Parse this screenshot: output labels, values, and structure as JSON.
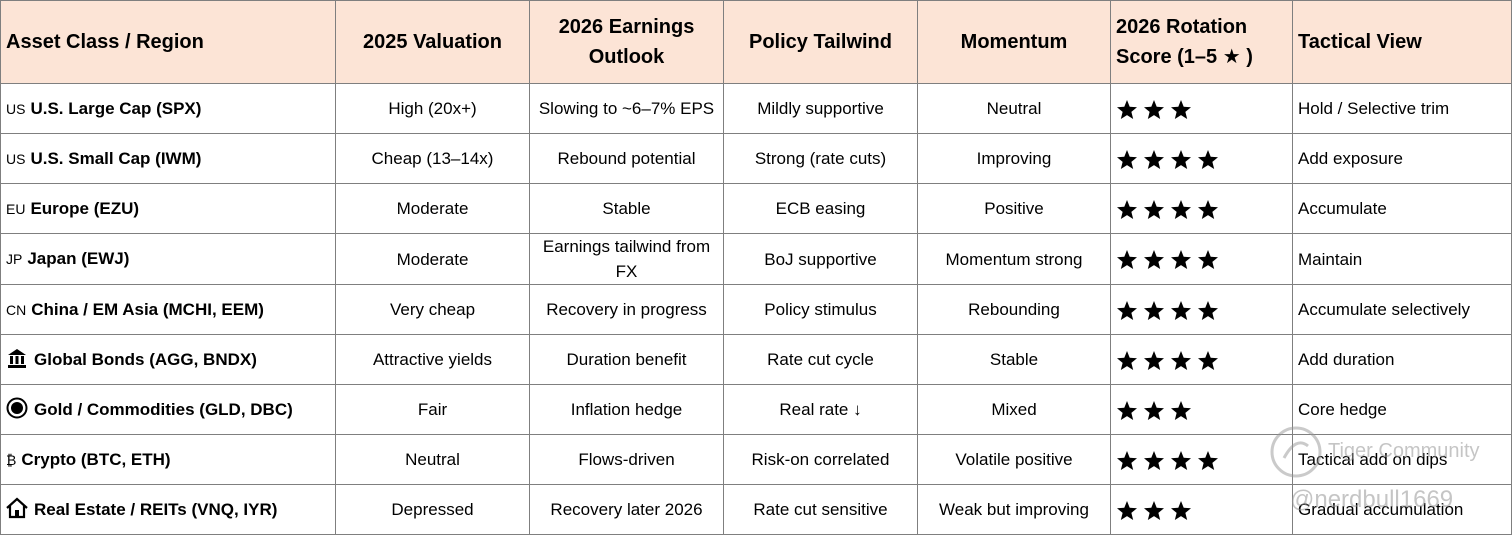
{
  "table": {
    "header": [
      "Asset Class / Region",
      "2025 Valuation",
      "2026 Earnings Outlook",
      "Policy Tailwind",
      "Momentum",
      "2026 Rotation Score (1–5 ★ )",
      "Tactical View"
    ],
    "rows": [
      {
        "prefix": "US",
        "asset": "U.S. Large Cap (SPX)",
        "valuation": "High (20x+)",
        "earnings": "Slowing to ~6–7% EPS",
        "policy": "Mildly supportive",
        "momentum": "Neutral",
        "score": 3,
        "view": "Hold / Selective trim"
      },
      {
        "prefix": "US",
        "asset": "U.S. Small Cap (IWM)",
        "valuation": "Cheap (13–14x)",
        "earnings": "Rebound potential",
        "policy": "Strong (rate cuts)",
        "momentum": "Improving",
        "score": 4,
        "view": "Add exposure"
      },
      {
        "prefix": "EU",
        "asset": "Europe (EZU)",
        "valuation": "Moderate",
        "earnings": "Stable",
        "policy": "ECB easing",
        "momentum": "Positive",
        "score": 4,
        "view": "Accumulate"
      },
      {
        "prefix": "JP",
        "asset": "Japan (EWJ)",
        "valuation": "Moderate",
        "earnings": "Earnings tailwind from FX",
        "policy": "BoJ supportive",
        "momentum": "Momentum strong",
        "score": 4,
        "view": "Maintain"
      },
      {
        "prefix": "CN",
        "asset": "China / EM Asia (MCHI, EEM)",
        "valuation": "Very cheap",
        "earnings": "Recovery in progress",
        "policy": "Policy stimulus",
        "momentum": "Rebounding",
        "score": 4,
        "view": "Accumulate selectively"
      },
      {
        "asset": "Global Bonds (AGG, BNDX)",
        "valuation": "Attractive yields",
        "earnings": "Duration benefit",
        "policy": "Rate cut cycle",
        "momentum": "Stable",
        "score": 4,
        "view": "Add duration"
      },
      {
        "asset": "Gold / Commodities (GLD, DBC)",
        "valuation": "Fair",
        "earnings": "Inflation hedge",
        "policy": "Real rate ↓",
        "momentum": "Mixed",
        "score": 3,
        "view": "Core hedge"
      },
      {
        "prefix": "₿",
        "asset": "Crypto (BTC, ETH)",
        "valuation": "Neutral",
        "earnings": "Flows-driven",
        "policy": "Risk-on correlated",
        "momentum": "Volatile positive",
        "score": 4,
        "view": "Tactical add on dips"
      },
      {
        "asset": "Real Estate / REITs (VNQ, IYR)",
        "valuation": "Depressed",
        "earnings": "Recovery later 2026",
        "policy": "Rate cut sensitive",
        "momentum": "Weak but improving",
        "score": 3,
        "view": "Gradual accumulation"
      }
    ]
  },
  "watermark": {
    "brand": "Tiger Community",
    "handle": "@nerdbull1669"
  }
}
